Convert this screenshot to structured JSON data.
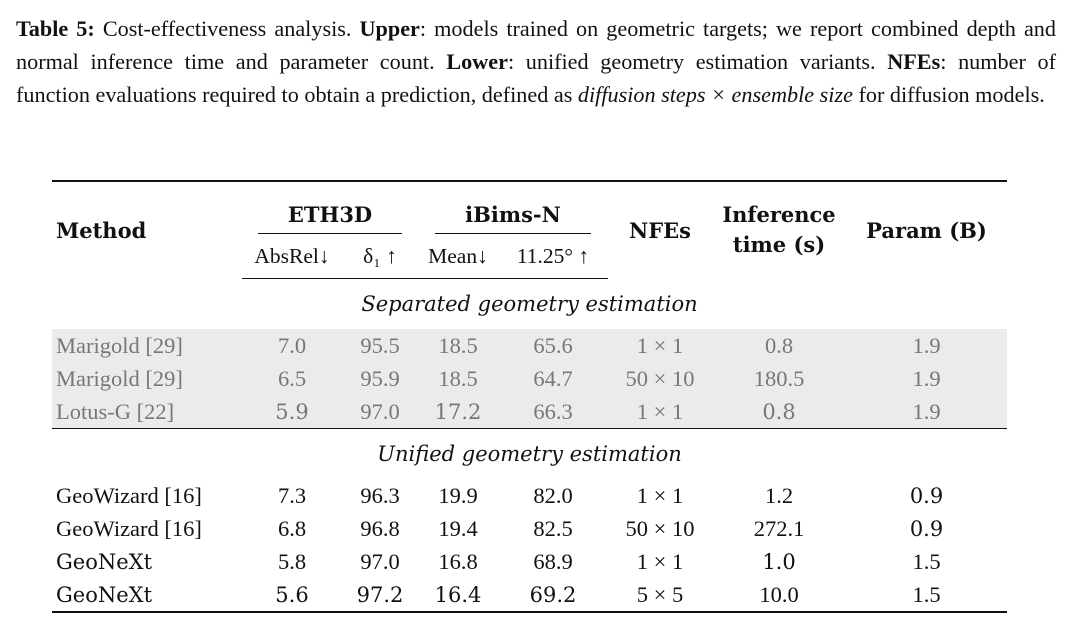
{
  "caption": {
    "label": "Table 5:",
    "t1": " Cost-effectiveness analysis. ",
    "upper_label": "Upper",
    "t2": ": models trained on geometric targets; we report combined depth and normal inference time and parameter count. ",
    "lower_label": "Lower",
    "t3": ": unified geometry estimation variants. ",
    "nfes_label": "NFEs",
    "t4": ": number of function evaluations required to obtain a prediction, defined as ",
    "italic_expr": "diffusion steps × ensemble size",
    "t5": " for diffusion models."
  },
  "table": {
    "headers": {
      "method": "Method",
      "eth3d": "ETH3D",
      "ibims": "iBims-N",
      "nfes": "NFEs",
      "inference_l1": "Inference",
      "inference_l2": "time (s)",
      "param": "Param (B)",
      "absrel": "AbsRel↓",
      "delta1": "δ₁ ↑",
      "mean": "Mean↓",
      "angle": "11.25° ↑"
    },
    "section_upper": "Separated geometry estimation",
    "section_lower": "Unified geometry estimation",
    "upper_rows": [
      {
        "method": "Marigold [29]",
        "absrel": "7.0",
        "delta1": "95.5",
        "mean": "18.5",
        "angle": "65.6",
        "nfes": "1 × 1",
        "time": "0.8",
        "param": "1.9"
      },
      {
        "method": "Marigold [29]",
        "absrel": "6.5",
        "delta1": "95.9",
        "mean": "18.5",
        "angle": "64.7",
        "nfes": "50 × 10",
        "time": "180.5",
        "param": "1.9"
      },
      {
        "method": "Lotus-G [22]",
        "absrel": "5.9",
        "delta1": "97.0",
        "mean": "17.2",
        "angle": "66.3",
        "nfes": "1 × 1",
        "time": "0.8",
        "param": "1.9"
      }
    ],
    "lower_rows": [
      {
        "method": "GeoWizard [16]",
        "absrel": "7.3",
        "delta1": "96.3",
        "mean": "19.9",
        "angle": "82.0",
        "nfes": "1 × 1",
        "time": "1.2",
        "param": "0.9"
      },
      {
        "method": "GeoWizard [16]",
        "absrel": "6.8",
        "delta1": "96.8",
        "mean": "19.4",
        "angle": "82.5",
        "nfes": "50 × 10",
        "time": "272.1",
        "param": "0.9"
      },
      {
        "method": "GeoNeXt",
        "absrel": "5.8",
        "delta1": "97.0",
        "mean": "16.8",
        "angle": "68.9",
        "nfes": "1 × 1",
        "time": "1.0",
        "param": "1.5"
      },
      {
        "method": "GeoNeXt",
        "absrel": "5.6",
        "delta1": "97.2",
        "mean": "16.4",
        "angle": "69.2",
        "nfes": "5 × 5",
        "time": "10.0",
        "param": "1.5"
      }
    ]
  }
}
